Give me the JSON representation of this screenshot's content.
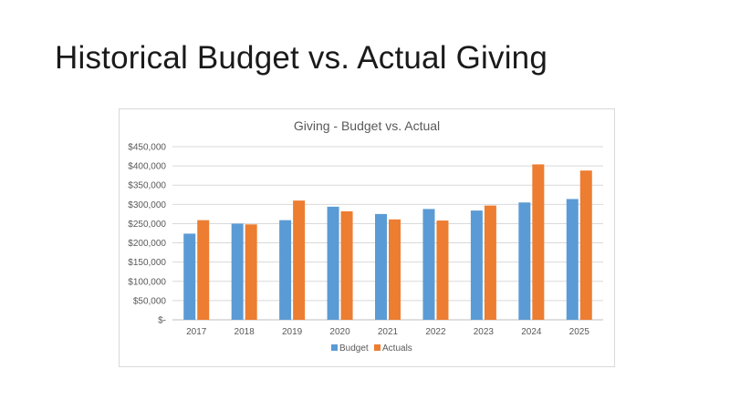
{
  "slide": {
    "title": "Historical Budget vs. Actual Giving"
  },
  "chart_data": {
    "type": "bar",
    "title": "Giving - Budget vs. Actual",
    "xlabel": "",
    "ylabel": "",
    "categories": [
      "2017",
      "2018",
      "2019",
      "2020",
      "2021",
      "2022",
      "2023",
      "2024",
      "2025"
    ],
    "series": [
      {
        "name": "Budget",
        "color": "#5b9bd5",
        "values": [
          224000,
          250000,
          259000,
          294000,
          275000,
          288000,
          284000,
          305000,
          314000
        ]
      },
      {
        "name": "Actuals",
        "color": "#ed7d31",
        "values": [
          259000,
          248000,
          310000,
          282000,
          261000,
          258000,
          297000,
          404000,
          388000
        ]
      }
    ],
    "ylim": [
      0,
      450000
    ],
    "yticks": [
      {
        "value": 0,
        "label": "$-"
      },
      {
        "value": 50000,
        "label": "$50,000"
      },
      {
        "value": 100000,
        "label": "$100,000"
      },
      {
        "value": 150000,
        "label": "$150,000"
      },
      {
        "value": 200000,
        "label": "$200,000"
      },
      {
        "value": 250000,
        "label": "$250,000"
      },
      {
        "value": 300000,
        "label": "$300,000"
      },
      {
        "value": 350000,
        "label": "$350,000"
      },
      {
        "value": 400000,
        "label": "$400,000"
      },
      {
        "value": 450000,
        "label": "$450,000"
      }
    ],
    "grid": true,
    "legend_position": "bottom"
  }
}
